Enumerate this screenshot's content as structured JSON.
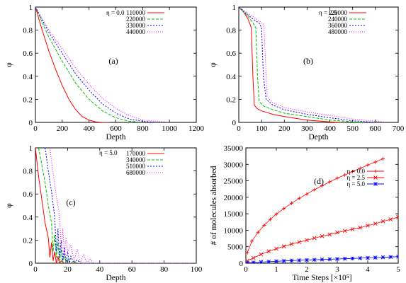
{
  "chart_data": [
    {
      "type": "line",
      "panel": "(a)",
      "annotation": "η = 0.0",
      "xlabel": "Depth",
      "ylabel": "φ",
      "xlim": [
        0,
        1200
      ],
      "ylim": [
        0,
        1
      ],
      "xticks": [
        "0",
        "200",
        "400",
        "600",
        "800",
        "1000",
        "1200"
      ],
      "yticks": [
        "0",
        "0.2",
        "0.4",
        "0.6",
        "0.8",
        "1"
      ],
      "legend_position": "top-right",
      "series": [
        {
          "name": "110000",
          "color": "#ff0000",
          "dash": "solid",
          "x": [
            0,
            50,
            100,
            150,
            200,
            250,
            300,
            350,
            400,
            450,
            500,
            550
          ],
          "y": [
            1.0,
            0.8,
            0.62,
            0.46,
            0.32,
            0.2,
            0.11,
            0.05,
            0.02,
            0.005,
            0.0,
            0.0
          ]
        },
        {
          "name": "220000",
          "color": "#00c000",
          "dash": "4,2",
          "x": [
            0,
            100,
            200,
            300,
            400,
            500,
            600,
            700,
            800
          ],
          "y": [
            1.0,
            0.74,
            0.53,
            0.34,
            0.2,
            0.1,
            0.04,
            0.01,
            0.0
          ]
        },
        {
          "name": "330000",
          "color": "#0000ff",
          "dash": "2,2",
          "x": [
            0,
            100,
            200,
            300,
            400,
            500,
            600,
            700,
            800,
            900
          ],
          "y": [
            1.0,
            0.78,
            0.6,
            0.42,
            0.28,
            0.16,
            0.08,
            0.03,
            0.01,
            0.0
          ]
        },
        {
          "name": "440000",
          "color": "#ff00ff",
          "dash": "1,2",
          "x": [
            0,
            100,
            200,
            300,
            400,
            500,
            600,
            700,
            800,
            900,
            1000
          ],
          "y": [
            1.0,
            0.8,
            0.64,
            0.47,
            0.33,
            0.21,
            0.12,
            0.06,
            0.02,
            0.01,
            0.0
          ]
        }
      ]
    },
    {
      "type": "line",
      "panel": "(b)",
      "annotation": "η = 2.5",
      "xlabel": "Depth",
      "ylabel": "φ",
      "xlim": [
        0,
        700
      ],
      "ylim": [
        0,
        1
      ],
      "xticks": [
        "0",
        "100",
        "200",
        "300",
        "400",
        "500",
        "600",
        "700"
      ],
      "yticks": [
        "0",
        "0.2",
        "0.4",
        "0.6",
        "0.8",
        "1"
      ],
      "legend_position": "top-right",
      "series": [
        {
          "name": "120000",
          "color": "#ff0000",
          "dash": "solid",
          "x": [
            0,
            20,
            40,
            55,
            62,
            68,
            80,
            100,
            150,
            200,
            300,
            400,
            450
          ],
          "y": [
            1.0,
            0.96,
            0.9,
            0.82,
            0.4,
            0.15,
            0.12,
            0.1,
            0.07,
            0.05,
            0.02,
            0.005,
            0.0
          ]
        },
        {
          "name": "240000",
          "color": "#00c000",
          "dash": "4,2",
          "x": [
            0,
            20,
            40,
            60,
            75,
            82,
            90,
            110,
            150,
            200,
            300,
            400,
            500,
            550
          ],
          "y": [
            1.0,
            0.96,
            0.92,
            0.87,
            0.82,
            0.4,
            0.18,
            0.14,
            0.11,
            0.08,
            0.05,
            0.02,
            0.005,
            0.0
          ]
        },
        {
          "name": "360000",
          "color": "#0000ff",
          "dash": "2,2",
          "x": [
            0,
            30,
            60,
            90,
            100,
            108,
            120,
            150,
            200,
            300,
            400,
            500,
            600
          ],
          "y": [
            1.0,
            0.95,
            0.9,
            0.86,
            0.82,
            0.4,
            0.2,
            0.15,
            0.11,
            0.07,
            0.04,
            0.015,
            0.0
          ]
        },
        {
          "name": "480000",
          "color": "#ff00ff",
          "dash": "1,2",
          "x": [
            0,
            30,
            60,
            90,
            110,
            118,
            125,
            150,
            200,
            300,
            400,
            500,
            600,
            650
          ],
          "y": [
            1.0,
            0.96,
            0.92,
            0.88,
            0.85,
            0.5,
            0.22,
            0.17,
            0.13,
            0.09,
            0.06,
            0.03,
            0.01,
            0.0
          ]
        }
      ]
    },
    {
      "type": "line",
      "panel": "(c)",
      "annotation": "η = 5.0",
      "xlabel": "Depth",
      "ylabel": "φ",
      "xlim": [
        0,
        100
      ],
      "ylim": [
        0,
        1
      ],
      "xticks": [
        "0",
        "20",
        "40",
        "60",
        "80",
        "100"
      ],
      "yticks": [
        "0",
        "0.2",
        "0.4",
        "0.6",
        "0.8",
        "1"
      ],
      "legend_position": "top-right",
      "series": [
        {
          "name": "170000",
          "color": "#ff0000",
          "dash": "solid",
          "x": [
            0,
            2,
            4,
            6,
            8,
            9,
            10,
            11,
            12,
            13,
            14,
            15,
            16,
            18,
            20,
            22,
            100
          ],
          "y": [
            1.0,
            0.75,
            0.55,
            0.35,
            0.22,
            0.05,
            0.18,
            0.02,
            0.1,
            0.0,
            0.06,
            0.0,
            0.02,
            0.0,
            0.0,
            0.0,
            0.0
          ]
        },
        {
          "name": "340000",
          "color": "#00c000",
          "dash": "4,2",
          "x": [
            2,
            4,
            6,
            8,
            10,
            11,
            12,
            13,
            14,
            15,
            16,
            17,
            18,
            19,
            20,
            22,
            24,
            26,
            100
          ],
          "y": [
            1.0,
            0.85,
            0.7,
            0.5,
            0.35,
            0.1,
            0.25,
            0.05,
            0.18,
            0.02,
            0.12,
            0.0,
            0.08,
            0.0,
            0.04,
            0.0,
            0.02,
            0.0,
            0.0
          ]
        },
        {
          "name": "510000",
          "color": "#0000ff",
          "dash": "2,2",
          "x": [
            6,
            8,
            10,
            12,
            13,
            14,
            15,
            16,
            17,
            18,
            19,
            20,
            21,
            22,
            24,
            26,
            28,
            30,
            100
          ],
          "y": [
            1.0,
            0.8,
            0.62,
            0.4,
            0.1,
            0.3,
            0.05,
            0.2,
            0.02,
            0.14,
            0.0,
            0.1,
            0.0,
            0.06,
            0.0,
            0.03,
            0.0,
            0.0,
            0.0
          ]
        },
        {
          "name": "680000",
          "color": "#ff00ff",
          "dash": "1,2",
          "x": [
            9,
            11,
            13,
            15,
            16,
            17,
            18,
            19,
            20,
            22,
            24,
            26,
            28,
            30,
            32,
            34,
            36,
            38,
            100
          ],
          "y": [
            1.0,
            0.78,
            0.58,
            0.42,
            0.12,
            0.3,
            0.06,
            0.22,
            0.1,
            0.16,
            0.02,
            0.12,
            0.0,
            0.08,
            0.0,
            0.04,
            0.0,
            0.0,
            0.0
          ]
        }
      ]
    },
    {
      "type": "scatter",
      "panel": "(d)",
      "xlabel": "Time Steps [×10⁵]",
      "ylabel": "# of molecules absorbed",
      "xlim": [
        0,
        5
      ],
      "ylim": [
        0,
        35000
      ],
      "xticks": [
        "0",
        "1",
        "2",
        "3",
        "4",
        "5"
      ],
      "yticks": [
        "0",
        "5000",
        "10000",
        "15000",
        "20000",
        "25000",
        "30000",
        "35000"
      ],
      "legend_position": "upper-right",
      "series": [
        {
          "name": "η = 0.0",
          "color": "#ff0000",
          "marker": "+",
          "x": [
            0.05,
            0.2,
            0.4,
            0.6,
            0.8,
            1.0,
            1.25,
            1.5,
            1.75,
            2.0,
            2.25,
            2.5,
            2.75,
            3.0,
            3.25,
            3.5,
            3.75,
            4.0,
            4.25,
            4.5
          ],
          "y": [
            3200,
            6700,
            9400,
            11500,
            13300,
            14900,
            16600,
            18200,
            19700,
            21000,
            22300,
            23500,
            24700,
            25800,
            26800,
            27800,
            28800,
            29800,
            30700,
            31700
          ]
        },
        {
          "name": "η = 2.5",
          "color": "#ff0000",
          "marker": "x",
          "x": [
            0.05,
            0.25,
            0.5,
            0.75,
            1.0,
            1.25,
            1.5,
            1.75,
            2.0,
            2.25,
            2.5,
            2.75,
            3.0,
            3.25,
            3.5,
            3.75,
            4.0,
            4.25,
            4.5,
            4.75,
            5.0
          ],
          "y": [
            700,
            1600,
            2700,
            3600,
            4400,
            5100,
            5800,
            6400,
            7000,
            7600,
            8200,
            8700,
            9300,
            9800,
            10300,
            10800,
            11400,
            12000,
            12700,
            13300,
            14000
          ]
        },
        {
          "name": "η = 5.0",
          "color": "#0000ff",
          "marker": "*",
          "x": [
            0.05,
            0.25,
            0.5,
            0.75,
            1.0,
            1.25,
            1.5,
            1.75,
            2.0,
            2.25,
            2.5,
            2.75,
            3.0,
            3.25,
            3.5,
            3.75,
            4.0,
            4.25,
            4.5,
            4.75,
            5.0
          ],
          "y": [
            80,
            200,
            350,
            480,
            590,
            690,
            780,
            870,
            960,
            1040,
            1120,
            1200,
            1280,
            1360,
            1440,
            1520,
            1600,
            1690,
            1790,
            1900,
            2000
          ]
        }
      ]
    }
  ]
}
